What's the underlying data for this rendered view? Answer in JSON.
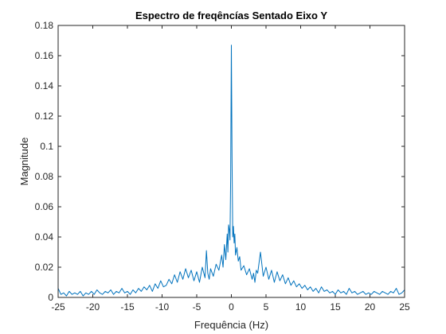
{
  "chart_data": {
    "type": "line",
    "title": "Espectro de freqêncías Sentado Eixo Y",
    "xlabel": "Frequência (Hz)",
    "ylabel": "Magnitude",
    "xlim": [
      -25,
      25
    ],
    "ylim": [
      0,
      0.18
    ],
    "xticks": [
      -25,
      -20,
      -15,
      -10,
      -5,
      0,
      5,
      10,
      15,
      20,
      25
    ],
    "yticks": [
      0,
      0.02,
      0.04,
      0.06,
      0.08,
      0.1,
      0.12,
      0.14,
      0.16,
      0.18
    ],
    "xtick_labels": [
      "-25",
      "-20",
      "-15",
      "-10",
      "-5",
      "0",
      "5",
      "10",
      "15",
      "20",
      "25"
    ],
    "ytick_labels": [
      "0",
      "0.02",
      "0.04",
      "0.06",
      "0.08",
      "0.1",
      "0.12",
      "0.14",
      "0.16",
      "0.18"
    ],
    "grid": false,
    "line_color": "#0072BD",
    "series": [
      {
        "x": [
          -25,
          -24.6,
          -24.2,
          -23.8,
          -23.4,
          -23,
          -22.6,
          -22.2,
          -21.8,
          -21.4,
          -21,
          -20.6,
          -20.2,
          -19.8,
          -19.4,
          -19,
          -18.6,
          -18.2,
          -17.8,
          -17.4,
          -17,
          -16.6,
          -16.2,
          -15.8,
          -15.4,
          -15,
          -14.6,
          -14.2,
          -13.8,
          -13.4,
          -13,
          -12.6,
          -12.2,
          -11.8,
          -11.4,
          -11,
          -10.6,
          -10.2,
          -9.8,
          -9.4,
          -9,
          -8.6,
          -8.2,
          -7.8,
          -7.4,
          -7,
          -6.6,
          -6.2,
          -5.8,
          -5.4,
          -5,
          -4.6,
          -4.2,
          -3.8,
          -3.6,
          -3.4,
          -3.2,
          -3,
          -2.6,
          -2.2,
          -1.8,
          -1.4,
          -1.2,
          -1,
          -0.8,
          -0.6,
          -0.5,
          -0.4,
          -0.3,
          -0.2,
          -0.1,
          0,
          0.1,
          0.2,
          0.3,
          0.4,
          0.5,
          0.6,
          0.8,
          1,
          1.2,
          1.4,
          1.8,
          2.2,
          2.6,
          3,
          3.2,
          3.4,
          3.6,
          3.8,
          4.2,
          4.6,
          5,
          5.4,
          5.8,
          6.2,
          6.6,
          7,
          7.4,
          7.8,
          8.2,
          8.6,
          9,
          9.4,
          9.8,
          10.2,
          10.6,
          11,
          11.4,
          11.8,
          12.2,
          12.6,
          13,
          13.4,
          13.8,
          14.2,
          14.6,
          15,
          15.4,
          15.8,
          16.2,
          16.6,
          17,
          17.4,
          17.8,
          18.2,
          18.6,
          19,
          19.4,
          19.8,
          20.2,
          20.6,
          21,
          21.4,
          21.8,
          22.2,
          22.6,
          23,
          23.4,
          23.8,
          24.2,
          24.6,
          25
        ],
        "y": [
          0.006,
          0.002,
          0.003,
          0.001,
          0.004,
          0.002,
          0.003,
          0.002,
          0.004,
          0.001,
          0.003,
          0.002,
          0.004,
          0.002,
          0.005,
          0.003,
          0.002,
          0.004,
          0.003,
          0.005,
          0.002,
          0.004,
          0.003,
          0.006,
          0.003,
          0.004,
          0.002,
          0.005,
          0.003,
          0.006,
          0.004,
          0.007,
          0.005,
          0.008,
          0.004,
          0.009,
          0.006,
          0.011,
          0.007,
          0.008,
          0.012,
          0.009,
          0.015,
          0.01,
          0.017,
          0.012,
          0.019,
          0.013,
          0.018,
          0.011,
          0.017,
          0.01,
          0.02,
          0.013,
          0.031,
          0.016,
          0.012,
          0.019,
          0.014,
          0.022,
          0.018,
          0.028,
          0.02,
          0.035,
          0.025,
          0.042,
          0.03,
          0.048,
          0.045,
          0.038,
          0.08,
          0.167,
          0.09,
          0.04,
          0.047,
          0.036,
          0.042,
          0.028,
          0.033,
          0.024,
          0.027,
          0.018,
          0.021,
          0.015,
          0.019,
          0.012,
          0.016,
          0.01,
          0.018,
          0.016,
          0.03,
          0.014,
          0.02,
          0.012,
          0.018,
          0.01,
          0.017,
          0.011,
          0.015,
          0.009,
          0.013,
          0.008,
          0.011,
          0.007,
          0.009,
          0.006,
          0.008,
          0.005,
          0.007,
          0.004,
          0.006,
          0.003,
          0.007,
          0.004,
          0.005,
          0.003,
          0.004,
          0.002,
          0.005,
          0.003,
          0.004,
          0.002,
          0.006,
          0.003,
          0.004,
          0.002,
          0.003,
          0.004,
          0.002,
          0.003,
          0.002,
          0.004,
          0.003,
          0.002,
          0.004,
          0.003,
          0.002,
          0.004,
          0.003,
          0.006,
          0.002,
          0.003,
          0.005
        ]
      }
    ]
  }
}
